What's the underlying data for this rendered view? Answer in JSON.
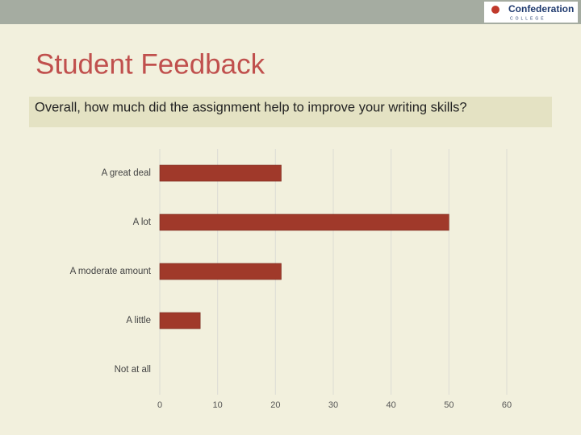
{
  "logo": {
    "name": "Confederation",
    "sub": "COLLEGE"
  },
  "chart_data": {
    "type": "bar",
    "orientation": "horizontal",
    "title": "Student Feedback",
    "subtitle": "Overall, how much did the assignment help to improve your writing skills?",
    "categories": [
      "A great deal",
      "A lot",
      "A moderate amount",
      "A little",
      "Not at all"
    ],
    "values": [
      21,
      50,
      21,
      7,
      0
    ],
    "color": "#a0392a",
    "xlim": [
      0,
      60
    ],
    "xticks": [
      0,
      10,
      20,
      30,
      40,
      50,
      60
    ],
    "grid": true
  }
}
